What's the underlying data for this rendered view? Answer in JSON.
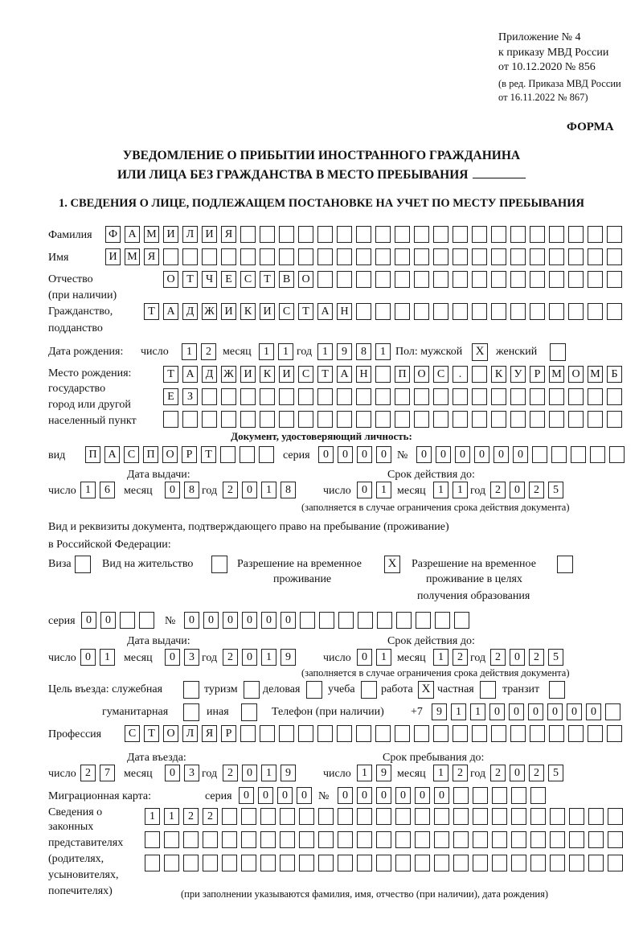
{
  "header": {
    "appendix": "Приложение № 4",
    "order": "к приказу МВД России",
    "order_date": "от 10.12.2020 № 856",
    "revision1": "(в ред. Приказа МВД России",
    "revision2": "от 16.11.2022 № 867)",
    "form_label": "ФОРМА",
    "title1": "УВЕДОМЛЕНИЕ О ПРИБЫТИИ ИНОСТРАННОГО ГРАЖДАНИНА",
    "title2": "ИЛИ ЛИЦА БЕЗ ГРАЖДАНСТВА В МЕСТО ПРЕБЫВАНИЯ",
    "section1": "1. СВЕДЕНИЯ О ЛИЦЕ, ПОДЛЕЖАЩЕМ ПОСТАНОВКЕ НА УЧЕТ ПО МЕСТУ ПРЕБЫВАНИЯ"
  },
  "person": {
    "surname_label": "Фамилия",
    "surname": "ФАМИЛИЯ",
    "name_label": "Имя",
    "name": "ИМЯ",
    "patronymic_label1": "Отчество",
    "patronymic_label2": "(при наличии)",
    "patronymic": "ОТЧЕСТВО",
    "citizenship_label1": "Гражданство,",
    "citizenship_label2": "подданство",
    "citizenship": "ТАДЖИКИСТАН",
    "birth_label": "Дата рождения:",
    "day_label": "число",
    "month_label": "месяц",
    "year_label": "год",
    "birth_day": "12",
    "birth_month": "11",
    "birth_year": "1981",
    "sex_label": "Пол: мужской",
    "male": "X",
    "female_label": "женский",
    "female": "",
    "birthplace_label1": "Место рождения:",
    "birthplace_label2": "государство",
    "birthplace_label3": "город или другой",
    "birthplace_label4": "населенный пункт",
    "birthplace_row1": "ТАДЖИКИСТАН ПОС. КУРМОМБ",
    "birthplace_row2": "ЕЗ",
    "birthplace_row3": ""
  },
  "identity_doc": {
    "heading": "Документ, удостоверяющий личность:",
    "type_label": "вид",
    "type": "ПАСПОРТ",
    "series_label": "серия",
    "series": "0000",
    "number_label": "№",
    "number": "000000",
    "issue_label": "Дата выдачи:",
    "valid_label": "Срок действия до:",
    "day_label": "число",
    "month_label": "месяц",
    "year_label": "год",
    "issue_day": "16",
    "issue_month": "08",
    "issue_year": "2018",
    "valid_day": "01",
    "valid_month": "11",
    "valid_year": "2025",
    "note": "(заполняется в случае ограничения срока действия документа)"
  },
  "stay_doc": {
    "heading1": "Вид и реквизиты документа, подтверждающего право на пребывание (проживание)",
    "heading2": "в Российской Федерации:",
    "visa_label": "Виза",
    "visa": "",
    "residence_label": "Вид на жительство",
    "residence": "",
    "trp_label1": "Разрешение на временное",
    "trp_label2": "проживание",
    "trp": "X",
    "trp_edu_label1": "Разрешение на временное",
    "trp_edu_label2": "проживание в целях",
    "trp_edu_label3": "получения образования",
    "trp_edu": "",
    "series_label": "серия",
    "series": "00",
    "number_label": "№",
    "number": "000000",
    "issue_label": "Дата выдачи:",
    "valid_label": "Срок действия до:",
    "day_label": "число",
    "month_label": "месяц",
    "year_label": "год",
    "issue_day": "01",
    "issue_month": "03",
    "issue_year": "2019",
    "valid_day": "01",
    "valid_month": "12",
    "valid_year": "2025",
    "note": "(заполняется в случае ограничения срока действия документа)"
  },
  "purpose": {
    "label": "Цель въезда: служебная",
    "service": "",
    "tourism_label": "туризм",
    "tourism": "",
    "business_label": "деловая",
    "business": "",
    "study_label": "учеба",
    "study": "",
    "work_label": "работа",
    "work": "X",
    "private_label": "частная",
    "private": "",
    "transit_label": "транзит",
    "transit": "",
    "humanitarian_label": "гуманитарная",
    "humanitarian": "",
    "other_label": "иная",
    "other": ""
  },
  "phone": {
    "label": "Телефон (при наличии)",
    "prefix": "+7",
    "number": "911000000"
  },
  "profession": {
    "label": "Профессия",
    "value": "СТОЛЯР"
  },
  "entry": {
    "entry_label": "Дата въезда:",
    "stay_until_label": "Срок пребывания до:",
    "day_label": "число",
    "month_label": "месяц",
    "year_label": "год",
    "entry_day": "27",
    "entry_month": "03",
    "entry_year": "2019",
    "until_day": "19",
    "until_month": "12",
    "until_year": "2025"
  },
  "migration_card": {
    "label": "Миграционная карта:",
    "series_label": "серия",
    "series": "0000",
    "number_label": "№",
    "number": "000000"
  },
  "representatives": {
    "label1": "Сведения о",
    "label2": "законных",
    "label3": "представителях",
    "label4": "(родителях,",
    "label5": "усыновителях,",
    "label6": "попечителях)",
    "row1": "1122",
    "row2": "",
    "row3": "",
    "note": "(при заполнении указываются фамилия, имя, отчество (при наличии), дата рождения)"
  }
}
